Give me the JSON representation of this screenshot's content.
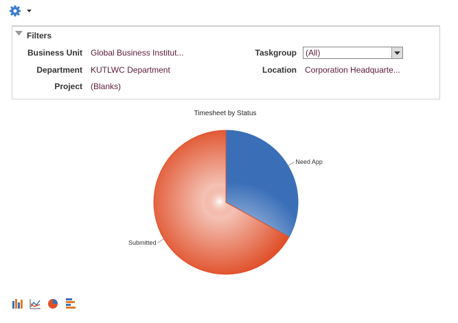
{
  "filters": {
    "title": "Filters",
    "fields": [
      {
        "label": "Business Unit",
        "value": "Global Business Institut..."
      },
      {
        "label": "Department",
        "value": "KUTLWC Department"
      },
      {
        "label": "Project",
        "value": "(Blanks)"
      },
      {
        "label": "Taskgroup",
        "value": "(All)"
      },
      {
        "label": "Location",
        "value": "Corporation Headquarte..."
      }
    ]
  },
  "chart_data": {
    "type": "pie",
    "title": "Timesheet by Status",
    "categories": [
      "Need App",
      "Submitted"
    ],
    "values": [
      33,
      67
    ],
    "colors": [
      "#3a6fb8",
      "#e0502a"
    ]
  }
}
